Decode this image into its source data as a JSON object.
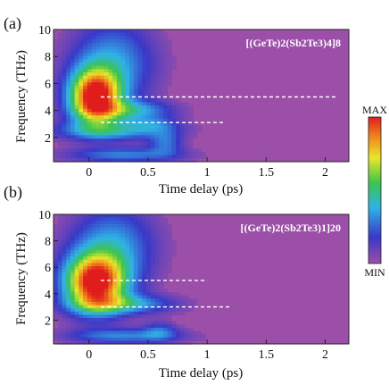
{
  "chart_data": [
    {
      "type": "heatmap",
      "panel_label": "(a)",
      "title": "[(GeTe)2(Sb2Te3)4]8",
      "xlabel": "Time delay (ps)",
      "ylabel": "Frequency (THz)",
      "xlim": [
        -0.3,
        2.2
      ],
      "ylim": [
        0.2,
        10
      ],
      "xticks": [
        "0",
        "0.5",
        "1",
        "1.5",
        "2"
      ],
      "yticks": [
        "2",
        "4",
        "6",
        "8",
        "10"
      ],
      "blobs": [
        {
          "t": 0.05,
          "f": 5.0,
          "dt": 0.15,
          "df": 1.4,
          "amp": 1.0
        },
        {
          "t": 0.2,
          "f": 7.5,
          "dt": 0.25,
          "df": 2.2,
          "amp": 0.35
        },
        {
          "t": 0.35,
          "f": 4.0,
          "dt": 0.25,
          "df": 0.5,
          "amp": 0.35
        },
        {
          "t": 0.2,
          "f": 2.5,
          "dt": 0.35,
          "df": 0.5,
          "amp": 0.35
        },
        {
          "t": 0.3,
          "f": 0.7,
          "dt": 0.35,
          "df": 0.4,
          "amp": 0.3
        },
        {
          "t": 0.65,
          "f": 1.6,
          "dt": 0.1,
          "df": 0.6,
          "amp": 0.25
        },
        {
          "t": 0.55,
          "f": 3.0,
          "dt": 0.15,
          "df": 0.4,
          "amp": 0.18
        }
      ],
      "guide_lines": [
        {
          "f": 5.0,
          "t_start": 0.1,
          "t_end": 2.1
        },
        {
          "f": 3.1,
          "t_start": 0.1,
          "t_end": 1.15
        }
      ]
    },
    {
      "type": "heatmap",
      "panel_label": "(b)",
      "title": "[(GeTe)2(Sb2Te3)1]20",
      "xlabel": "Time delay (ps)",
      "ylabel": "Frequency (THz)",
      "xlim": [
        -0.3,
        2.2
      ],
      "ylim": [
        0.2,
        10
      ],
      "xticks": [
        "0",
        "0.5",
        "1",
        "1.5",
        "2"
      ],
      "yticks": [
        "2",
        "4",
        "6",
        "8",
        "10"
      ],
      "blobs": [
        {
          "t": 0.05,
          "f": 4.8,
          "dt": 0.18,
          "df": 1.5,
          "amp": 1.0
        },
        {
          "t": 0.2,
          "f": 7.5,
          "dt": 0.25,
          "df": 2.2,
          "amp": 0.35
        },
        {
          "t": 0.3,
          "f": 3.2,
          "dt": 0.3,
          "df": 0.5,
          "amp": 0.35
        },
        {
          "t": 0.3,
          "f": 0.8,
          "dt": 0.35,
          "df": 0.4,
          "amp": 0.3
        },
        {
          "t": 0.6,
          "f": 1.2,
          "dt": 0.1,
          "df": 0.5,
          "amp": 0.2
        }
      ],
      "guide_lines": [
        {
          "f": 5.0,
          "t_start": 0.1,
          "t_end": 1.0
        },
        {
          "f": 3.0,
          "t_start": 0.1,
          "t_end": 1.2
        }
      ]
    }
  ],
  "colorbar": {
    "max_label": "MAX",
    "min_label": "MIN"
  },
  "colors": {
    "background": "#9c4fa8",
    "guide_line": "#ffffff"
  }
}
